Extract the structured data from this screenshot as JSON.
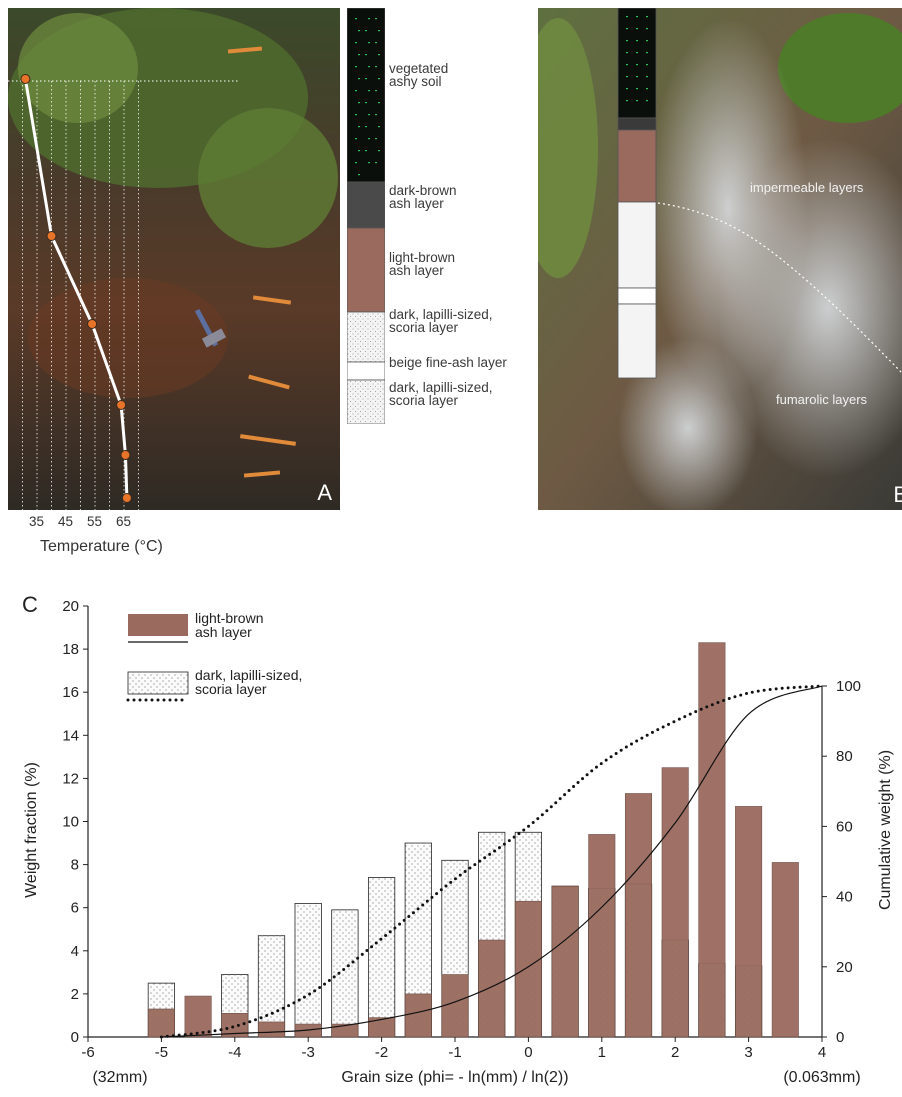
{
  "panel_a": {
    "letter": "A",
    "temperature_ticks": [
      "35",
      "45",
      "55",
      "65"
    ],
    "temperature_axis_label": "Temperature (°C)",
    "temperature_profile_c": [
      31,
      40,
      54,
      64,
      65.5,
      66
    ]
  },
  "stratigraphy": [
    {
      "label": "vegetated\nashy soil",
      "color": "#0b0f0c"
    },
    {
      "label": "dark-brown\nash layer",
      "color": "#4a4a4a"
    },
    {
      "label": "light-brown\nash layer",
      "color": "#9a6a5e"
    },
    {
      "label": "dark, lapilli-sized,\nscoria layer",
      "color": "#f4f4f4"
    },
    {
      "label": "beige fine-ash layer",
      "color": "#ffffff"
    },
    {
      "label": "dark, lapilli-sized,\nscoria layer",
      "color": "#f4f4f4"
    }
  ],
  "panel_b": {
    "letter": "B",
    "impermeable_label": "impermeable layers",
    "fumarolic_label": "fumarolic layers"
  },
  "chart_data": {
    "type": "bar",
    "panel_letter": "C",
    "xlabel": "Grain size (phi= - ln(mm) / ln(2))",
    "xlabel_left_note": "(32mm)",
    "xlabel_right_note": "(0.063mm)",
    "ylabel": "Weight fraction (%)",
    "ylabel_right": "Cumulative weight (%)",
    "xlim": [
      -6,
      4
    ],
    "ylim": [
      0,
      20
    ],
    "ylim_right": [
      0,
      100
    ],
    "x_ticks": [
      "-6",
      "-5",
      "-4",
      "-3",
      "-2",
      "-1",
      "0",
      "1",
      "2",
      "3",
      "4"
    ],
    "y_ticks": [
      "0",
      "2",
      "4",
      "6",
      "8",
      "10",
      "12",
      "14",
      "16",
      "18",
      "20"
    ],
    "y_right_ticks": [
      "0",
      "20",
      "40",
      "60",
      "80",
      "100"
    ],
    "x": [
      -5,
      -4.5,
      -4,
      -3.5,
      -3,
      -2.5,
      -2,
      -1.5,
      -1,
      -0.5,
      0,
      0.5,
      1,
      1.5,
      2,
      2.5,
      3,
      3.5
    ],
    "series": [
      {
        "name": "light-brown\nash layer",
        "bar_color": "#9a6a5e",
        "values": [
          1.3,
          1.9,
          1.1,
          0.7,
          0.6,
          0.6,
          0.9,
          2.0,
          2.9,
          4.5,
          6.3,
          7.0,
          9.4,
          11.3,
          12.5,
          18.3,
          10.7,
          8.1
        ],
        "cumulative_line": "solid"
      },
      {
        "name": "dark, lapilli-sized,\nscoria layer",
        "bar_color": "#fbfbfb",
        "values": [
          2.5,
          0,
          2.9,
          4.7,
          6.2,
          5.9,
          7.4,
          9.0,
          8.2,
          9.5,
          9.5,
          7.0,
          6.9,
          7.1,
          4.5,
          3.4,
          3.3,
          0
        ],
        "cumulative_line": "dotted"
      }
    ],
    "cumulative": {
      "x": [
        -5,
        -4,
        -3,
        -2,
        -1,
        0,
        1,
        2,
        3,
        4
      ],
      "light_brown": [
        0,
        1,
        2,
        5,
        10,
        20,
        37,
        61,
        92,
        100
      ],
      "scoria": [
        0,
        3,
        12,
        28,
        45,
        60,
        78,
        90,
        98,
        100
      ]
    }
  }
}
